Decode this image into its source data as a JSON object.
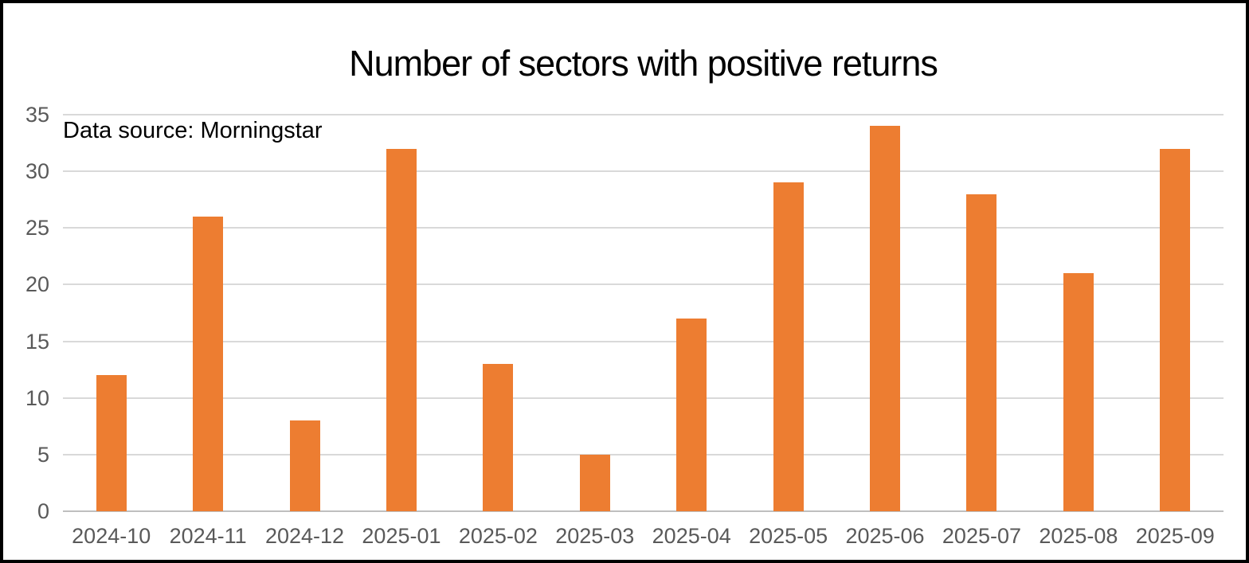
{
  "chart_data": {
    "type": "bar",
    "title": "Number of sectors with positive returns",
    "annotation": "Data source: Morningstar",
    "categories": [
      "2024-10",
      "2024-11",
      "2024-12",
      "2025-01",
      "2025-02",
      "2025-03",
      "2025-04",
      "2025-05",
      "2025-06",
      "2025-07",
      "2025-08",
      "2025-09"
    ],
    "values": [
      12,
      26,
      8,
      32,
      13,
      5,
      17,
      29,
      34,
      28,
      21,
      32
    ],
    "xlabel": "",
    "ylabel": "",
    "ylim": [
      0,
      35
    ],
    "yticks": [
      0,
      5,
      10,
      15,
      20,
      25,
      30,
      35
    ],
    "grid": true,
    "legend": "none",
    "bar_color": "#ED7D31",
    "gridline_color": "#D9D9D9",
    "axis_line_color": "#BFBFBF",
    "tick_label_color": "#595959",
    "title_color": "#000000",
    "annotation_color": "#000000"
  }
}
